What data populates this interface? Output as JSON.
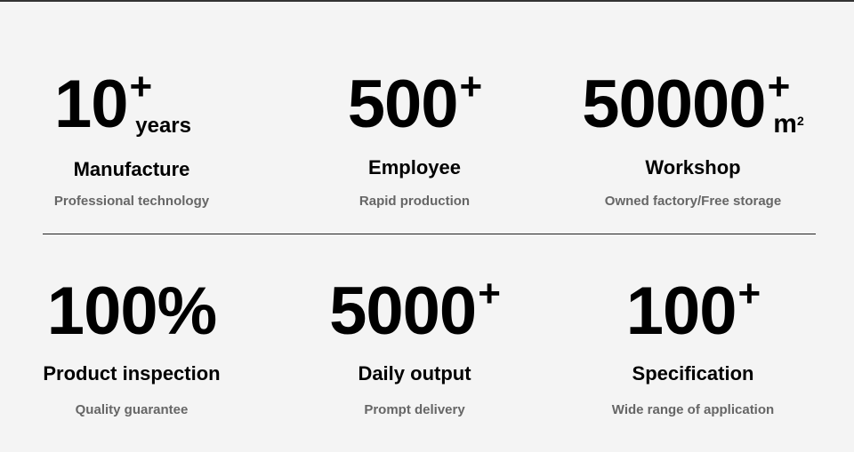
{
  "stats": [
    {
      "value": "10",
      "suffix": "+",
      "unit": "years",
      "unit_sup": "",
      "title": "Manufacture",
      "subtitle": "Professional technology"
    },
    {
      "value": "500",
      "suffix": "+",
      "unit": "",
      "unit_sup": "",
      "title": "Employee",
      "subtitle": "Rapid production"
    },
    {
      "value": "50000",
      "suffix": "+",
      "unit": "m",
      "unit_sup": "2",
      "title": "Workshop",
      "subtitle": "Owned factory/Free storage"
    },
    {
      "value": "100%",
      "suffix": "",
      "unit": "",
      "unit_sup": "",
      "title": "Product inspection",
      "subtitle": "Quality guarantee"
    },
    {
      "value": "5000",
      "suffix": "+",
      "unit": "",
      "unit_sup": "",
      "title": "Daily output",
      "subtitle": "Prompt delivery"
    },
    {
      "value": "100",
      "suffix": "+",
      "unit": "",
      "unit_sup": "",
      "title": "Specification",
      "subtitle": "Wide range of application"
    }
  ]
}
